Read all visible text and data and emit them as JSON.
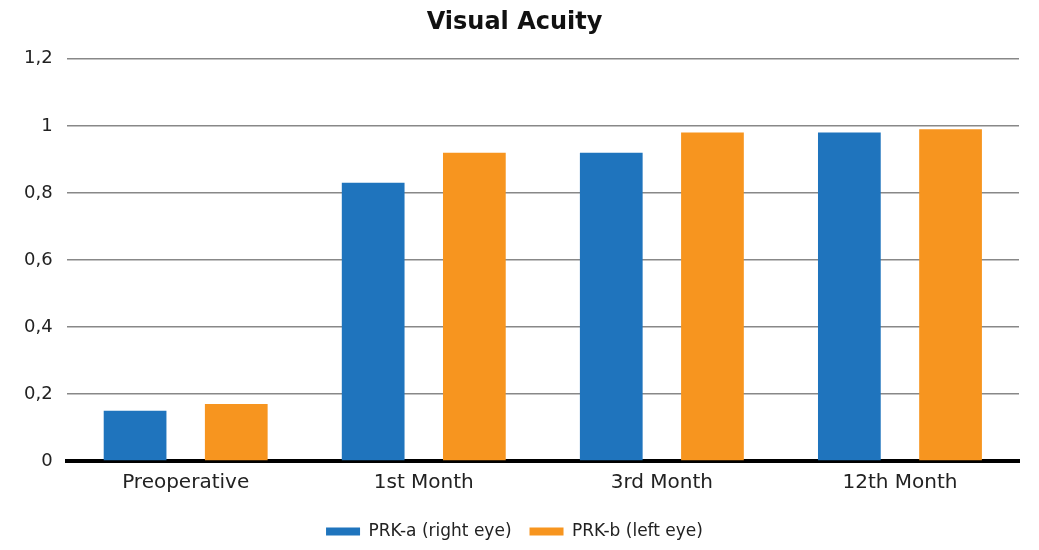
{
  "chart_data": {
    "type": "bar",
    "title": "Visual Acuity",
    "categories": [
      "Preoperative",
      "1st Month",
      "3rd Month",
      "12th Month"
    ],
    "series": [
      {
        "name": "PRK-a (right eye)",
        "color": "#1f74bd",
        "values": [
          0.15,
          0.83,
          0.92,
          0.98
        ]
      },
      {
        "name": "PRK-b (left eye)",
        "color": "#f7951f",
        "values": [
          0.17,
          0.92,
          0.98,
          0.99
        ]
      }
    ],
    "ylim": [
      0,
      1.2
    ],
    "yticks": [
      {
        "value": 0,
        "label": "0"
      },
      {
        "value": 0.2,
        "label": "0,2"
      },
      {
        "value": 0.4,
        "label": "0,4"
      },
      {
        "value": 0.6,
        "label": "0,6"
      },
      {
        "value": 0.8,
        "label": "0,8"
      },
      {
        "value": 1,
        "label": "1"
      },
      {
        "value": 1.2,
        "label": "1,2"
      }
    ],
    "grid": "y",
    "legend": "bottom"
  }
}
